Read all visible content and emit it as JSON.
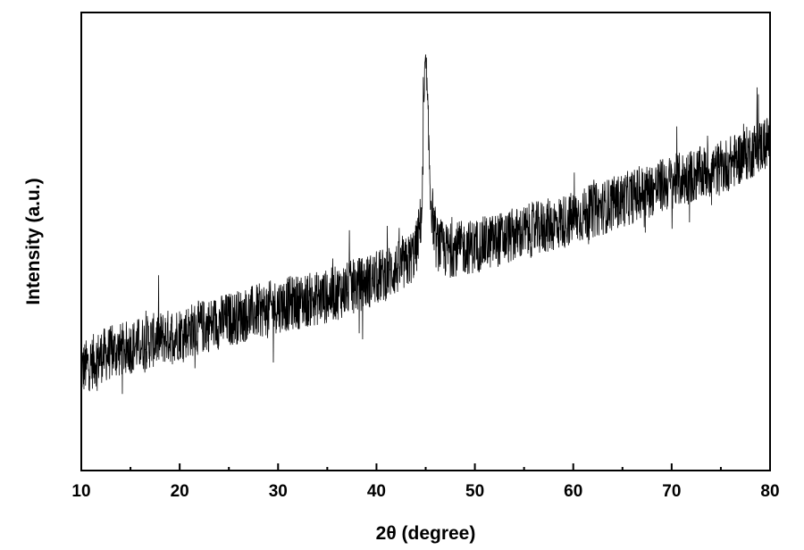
{
  "chart_data": {
    "type": "line",
    "title": "",
    "xlabel": "2θ (degree)",
    "ylabel": "Intensity (a.u.)",
    "xlim": [
      10,
      80
    ],
    "ylim": [
      0,
      1
    ],
    "y_tick_labels_shown": false,
    "x_ticks": [
      10,
      20,
      30,
      40,
      50,
      60,
      70,
      80
    ],
    "x_tick_labels": [
      "10",
      "20",
      "30",
      "40",
      "50",
      "60",
      "70",
      "80"
    ],
    "grid": false,
    "legend": "none",
    "line_color": "#000000",
    "series": [
      {
        "baseline_points": [
          [
            10,
            0.22
          ],
          [
            12,
            0.25
          ],
          [
            15,
            0.27
          ],
          [
            20,
            0.3
          ],
          [
            25,
            0.33
          ],
          [
            30,
            0.36
          ],
          [
            35,
            0.38
          ],
          [
            40,
            0.42
          ],
          [
            43,
            0.45
          ],
          [
            44,
            0.48
          ],
          [
            44.6,
            0.56
          ],
          [
            45.0,
            0.86
          ],
          [
            45.2,
            0.78
          ],
          [
            45.5,
            0.6
          ],
          [
            46,
            0.5
          ],
          [
            47,
            0.48
          ],
          [
            50,
            0.49
          ],
          [
            55,
            0.52
          ],
          [
            60,
            0.55
          ],
          [
            65,
            0.59
          ],
          [
            70,
            0.63
          ],
          [
            75,
            0.66
          ],
          [
            80,
            0.72
          ]
        ],
        "noise_amplitude": 0.06,
        "peaks": [
          {
            "x": 45.0,
            "y": 0.9
          }
        ]
      }
    ]
  }
}
